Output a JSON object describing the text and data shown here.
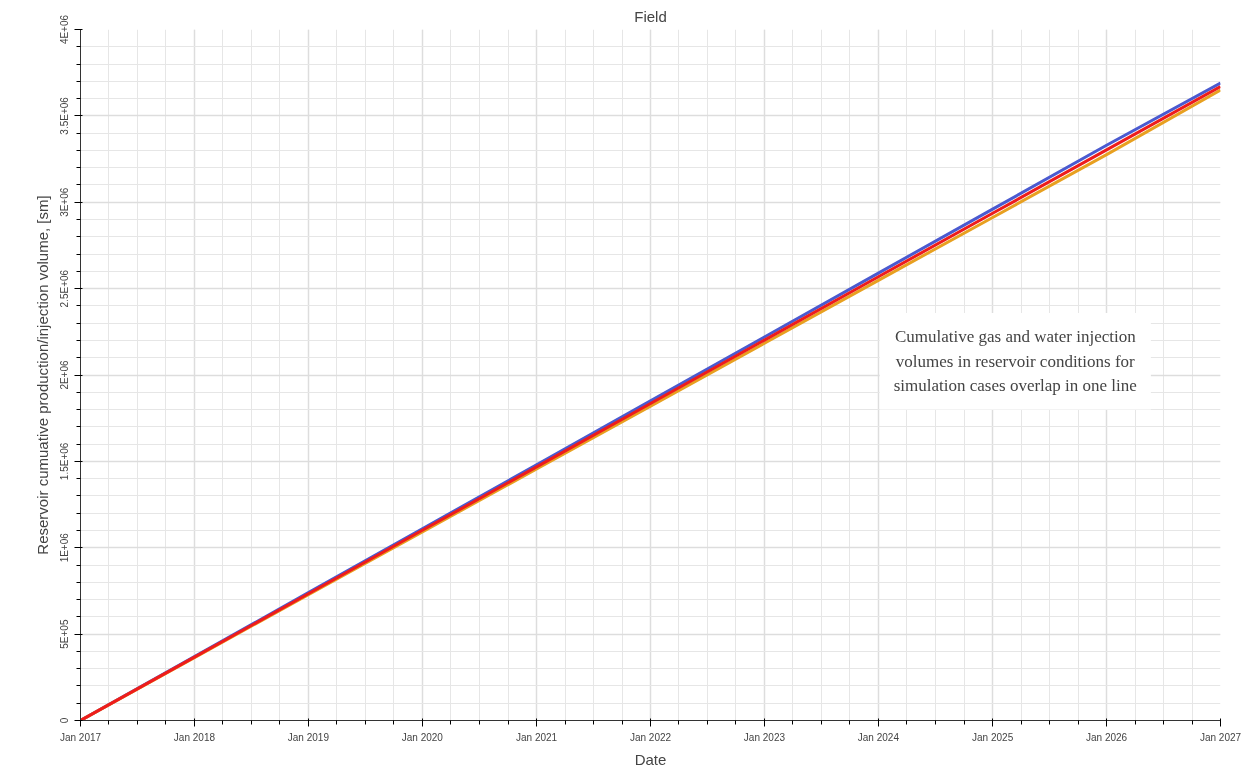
{
  "chart_data": {
    "type": "line",
    "title": "Field",
    "xlabel": "Date",
    "ylabel": "Reservoir cumuative production/injection volume, [sm]",
    "annotations": [
      "Cumulative gas and water injection\nvolumes in reservoir conditions for\nsimulation cases overlap in one line"
    ],
    "x": [
      "2017-01",
      "2018-01",
      "2019-01",
      "2020-01",
      "2021-01",
      "2022-01",
      "2023-01",
      "2024-01",
      "2025-01",
      "2026-01",
      "2027-01"
    ],
    "series": [
      {
        "color": "#4a5ad0",
        "values": [
          0,
          370000,
          740000,
          1110000,
          1480000,
          1850000,
          2220000,
          2590000,
          2960000,
          3330000,
          3690000
        ]
      },
      {
        "color": "#e8a020",
        "values": [
          0,
          364000,
          728000,
          1092000,
          1456000,
          1820000,
          2184000,
          2548000,
          2912000,
          3276000,
          3650000
        ]
      },
      {
        "color": "#ee1c1c",
        "values": [
          0,
          367000,
          734000,
          1101000,
          1468000,
          1835000,
          2202000,
          2569000,
          2936000,
          3303000,
          3670000
        ]
      }
    ],
    "xlim": [
      "2017-01",
      "2027-01"
    ],
    "xticks": [
      {
        "value": "2017-01",
        "label": "Jan 2017"
      },
      {
        "value": "2018-01",
        "label": "Jan 2018"
      },
      {
        "value": "2019-01",
        "label": "Jan 2019"
      },
      {
        "value": "2020-01",
        "label": "Jan 2020"
      },
      {
        "value": "2021-01",
        "label": "Jan 2021"
      },
      {
        "value": "2022-01",
        "label": "Jan 2022"
      },
      {
        "value": "2023-01",
        "label": "Jan 2023"
      },
      {
        "value": "2024-01",
        "label": "Jan 2024"
      },
      {
        "value": "2025-01",
        "label": "Jan 2025"
      },
      {
        "value": "2026-01",
        "label": "Jan 2026"
      },
      {
        "value": "2027-01",
        "label": "Jan 2027"
      }
    ],
    "ylim": [
      0,
      4000000
    ],
    "yticks": [
      0,
      {
        "value": 500000,
        "label": "5E+05"
      },
      {
        "value": 1000000,
        "label": "1E+06"
      },
      {
        "value": 1500000,
        "label": "1.5E+06"
      },
      {
        "value": 2000000,
        "label": "2E+06"
      },
      {
        "value": 2500000,
        "label": "2.5E+06"
      },
      {
        "value": 3000000,
        "label": "3E+06"
      },
      {
        "value": 3500000,
        "label": "3.5E+06"
      },
      {
        "value": 4000000,
        "label": "4E+06"
      }
    ],
    "grid": true,
    "marker": "none",
    "line_style": "solid"
  }
}
